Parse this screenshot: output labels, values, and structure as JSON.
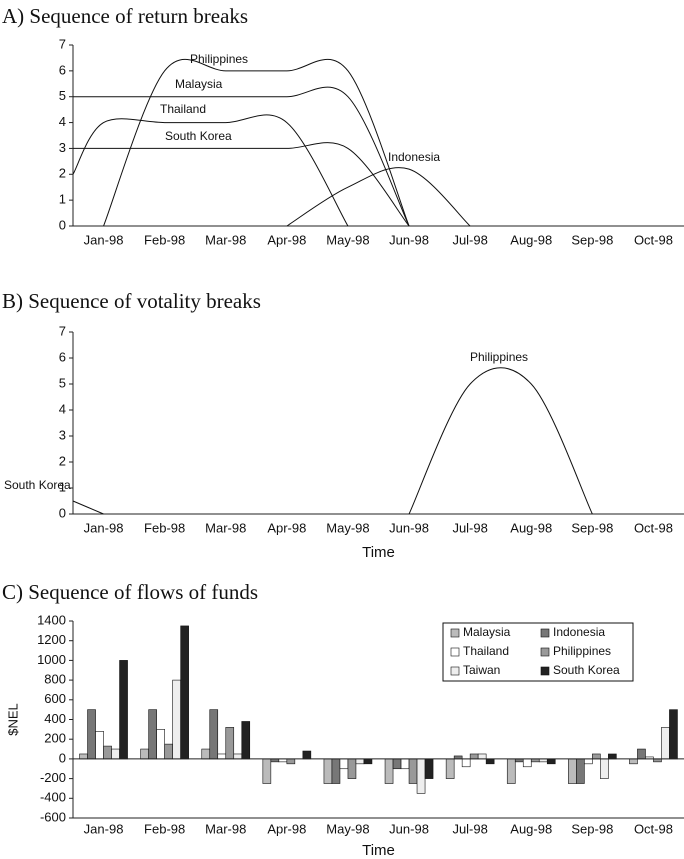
{
  "chart_data": [
    {
      "type": "line",
      "title": "A) Sequence of return breaks",
      "categories": [
        null,
        "Jan-98",
        "Feb-98",
        "Mar-98",
        "Apr-98",
        "May-98",
        "Jun-98",
        "Jul-98",
        "Aug-98",
        "Sep-98",
        "Oct-98"
      ],
      "ylim": [
        0,
        7
      ],
      "yticks": [
        0,
        1,
        2,
        3,
        4,
        5,
        6,
        7
      ],
      "series": [
        {
          "name": "Philippines",
          "color": "#111",
          "values": [
            null,
            0,
            6,
            6,
            6,
            6,
            0,
            null,
            null,
            null,
            null
          ]
        },
        {
          "name": "Malaysia",
          "color": "#111",
          "values": [
            5,
            5,
            5,
            5,
            5,
            5,
            0,
            null,
            null,
            null,
            null
          ]
        },
        {
          "name": "Thailand",
          "color": "#111",
          "values": [
            2,
            4,
            4,
            4,
            4,
            0,
            null,
            null,
            null,
            null,
            null
          ]
        },
        {
          "name": "South Korea",
          "color": "#111",
          "values": [
            3,
            3,
            3,
            3,
            3,
            3,
            0,
            null,
            null,
            null,
            null
          ]
        },
        {
          "name": "Indonesia",
          "color": "#111",
          "values": [
            null,
            null,
            null,
            null,
            0,
            1.5,
            2.2,
            0,
            null,
            null,
            null
          ]
        }
      ]
    },
    {
      "type": "line",
      "title": "B) Sequence of votality breaks",
      "x_label": "Time",
      "categories": [
        null,
        "Jan-98",
        "Feb-98",
        "Mar-98",
        "Apr-98",
        "May-98",
        "Jun-98",
        "Jul-98",
        "Aug-98",
        "Sep-98",
        "Oct-98"
      ],
      "ylim": [
        0,
        7
      ],
      "yticks": [
        0,
        1,
        2,
        3,
        4,
        5,
        6,
        7
      ],
      "series": [
        {
          "name": "Philippines",
          "color": "#111",
          "values": [
            null,
            null,
            null,
            null,
            null,
            null,
            0,
            5,
            5,
            0,
            null
          ]
        },
        {
          "name": "South Korea",
          "color": "#111",
          "values": [
            0.5,
            0,
            null,
            null,
            null,
            null,
            null,
            null,
            null,
            null,
            null
          ]
        }
      ]
    },
    {
      "type": "bar",
      "title": "C) Sequence of flows of funds",
      "x_label": "Time",
      "y_label": "$NEL",
      "categories": [
        "Jan-98",
        "Feb-98",
        "Mar-98",
        "Apr-98",
        "May-98",
        "Jun-98",
        "Jul-98",
        "Aug-98",
        "Sep-98",
        "Oct-98"
      ],
      "ylim": [
        -600,
        1400
      ],
      "yticks": [
        -600,
        -400,
        -200,
        0,
        200,
        400,
        600,
        800,
        1000,
        1200,
        1400
      ],
      "legend": "upper right",
      "series": [
        {
          "name": "Malaysia",
          "color": "#bbbbbb",
          "values": [
            50,
            100,
            100,
            -250,
            -250,
            -250,
            -200,
            -250,
            -250,
            -50
          ]
        },
        {
          "name": "Indonesia",
          "color": "#777777",
          "values": [
            500,
            500,
            500,
            -30,
            -250,
            -100,
            30,
            -30,
            -250,
            100
          ]
        },
        {
          "name": "Thailand",
          "color": "#ffffff",
          "values": [
            280,
            300,
            50,
            -30,
            -100,
            -100,
            -80,
            -80,
            -50,
            20
          ]
        },
        {
          "name": "Philippines",
          "color": "#999999",
          "values": [
            130,
            150,
            320,
            -50,
            -200,
            -250,
            50,
            -30,
            50,
            -30
          ]
        },
        {
          "name": "Taiwan",
          "color": "#eeeeee",
          "values": [
            100,
            800,
            50,
            0,
            -50,
            -350,
            50,
            -30,
            -200,
            320
          ]
        },
        {
          "name": "South Korea",
          "color": "#222222",
          "values": [
            1000,
            1350,
            380,
            80,
            -50,
            -200,
            -50,
            -50,
            50,
            500
          ]
        }
      ]
    }
  ]
}
